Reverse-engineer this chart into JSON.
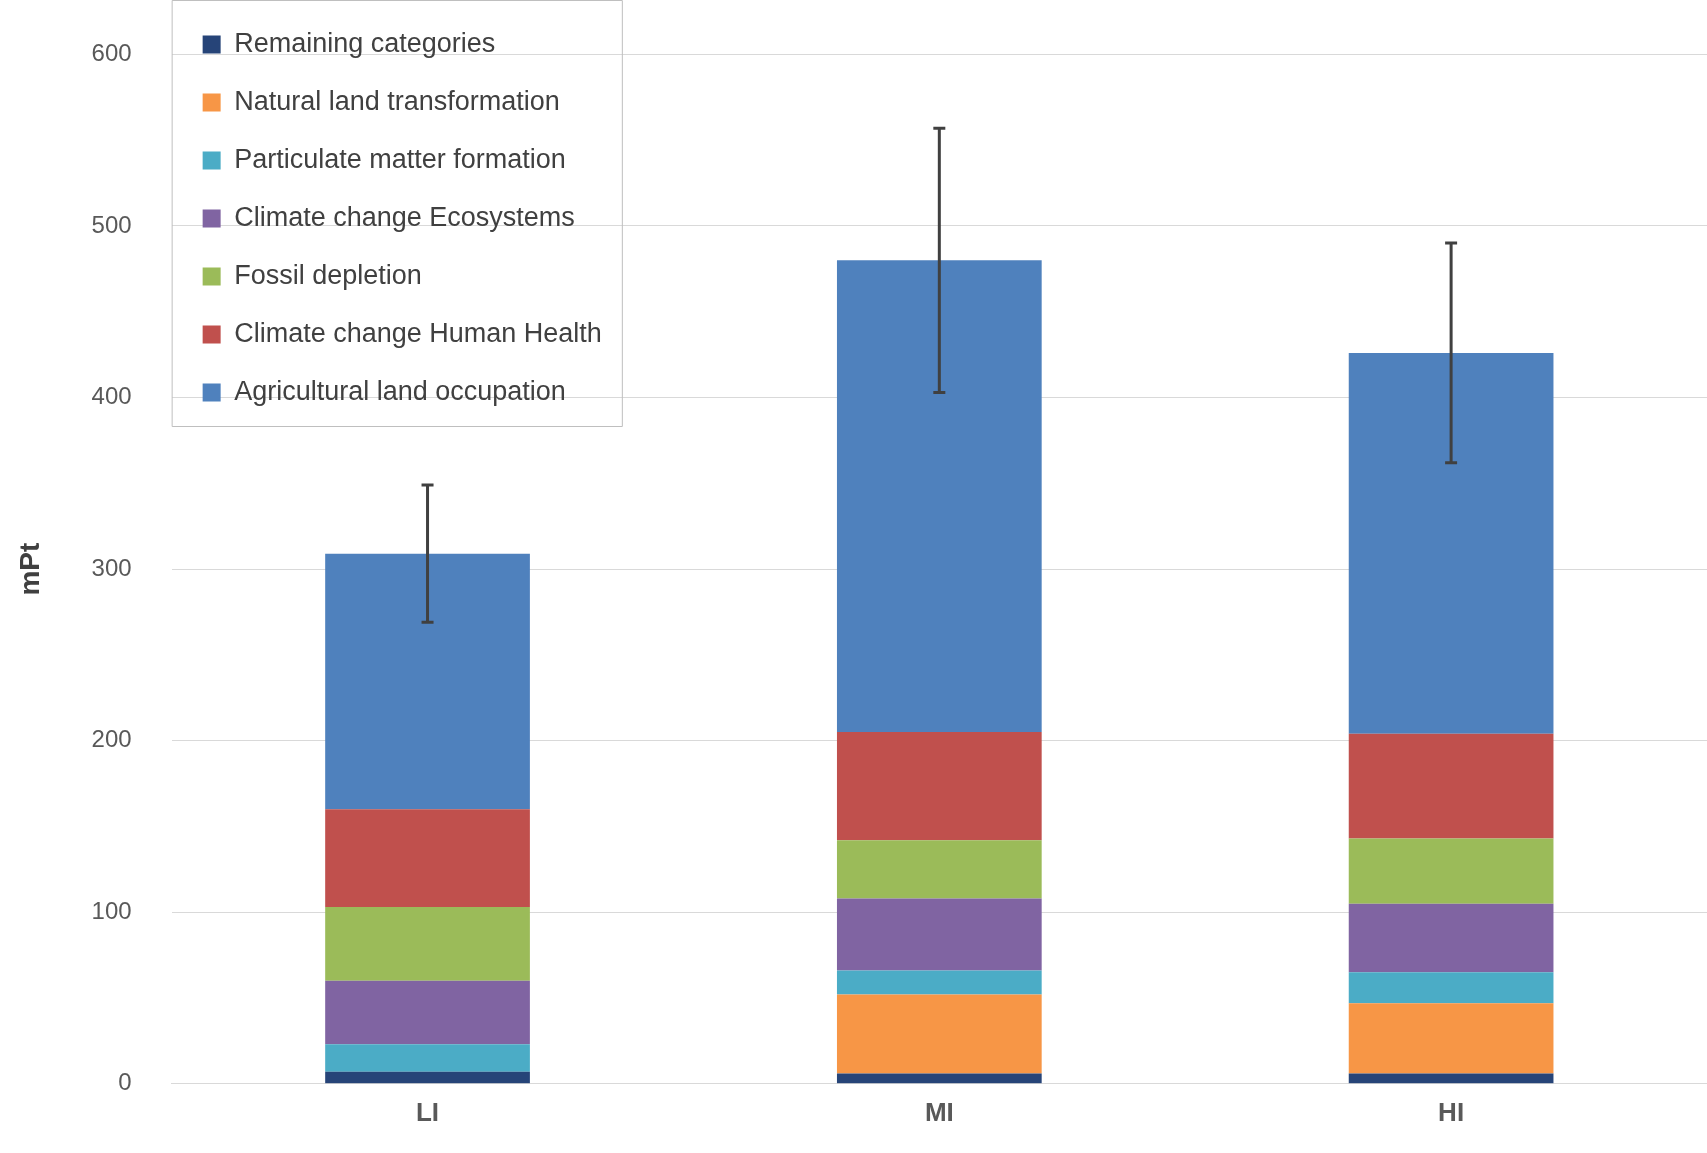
{
  "chart_data": {
    "type": "bar",
    "stacked": true,
    "ylabel": "mPt",
    "categories": [
      "LI",
      "MI",
      "HI"
    ],
    "ylim": [
      0,
      600
    ],
    "yticks": [
      0,
      100,
      200,
      300,
      400,
      500,
      600
    ],
    "grid": "y",
    "legend": "top left",
    "series": [
      {
        "name": "Remaining categories",
        "color": "#264478",
        "values": [
          7,
          6,
          6
        ]
      },
      {
        "name": "Natural land transformation",
        "color": "#f79646",
        "values": [
          0,
          46,
          41
        ]
      },
      {
        "name": "Particulate matter formation",
        "color": "#4bacc6",
        "values": [
          16,
          14,
          18
        ]
      },
      {
        "name": "Climate change Ecosystems",
        "color": "#8064a2",
        "values": [
          37,
          42,
          40
        ]
      },
      {
        "name": "Fossil depletion",
        "color": "#9bbb59",
        "values": [
          43,
          34,
          38
        ]
      },
      {
        "name": "Climate change Human Health",
        "color": "#c0504d",
        "values": [
          57,
          63,
          61
        ]
      },
      {
        "name": "Agricultural land occupation",
        "color": "#4f81bd",
        "values": [
          149,
          275,
          222
        ],
        "errors": [
          40,
          77,
          64
        ]
      }
    ]
  }
}
